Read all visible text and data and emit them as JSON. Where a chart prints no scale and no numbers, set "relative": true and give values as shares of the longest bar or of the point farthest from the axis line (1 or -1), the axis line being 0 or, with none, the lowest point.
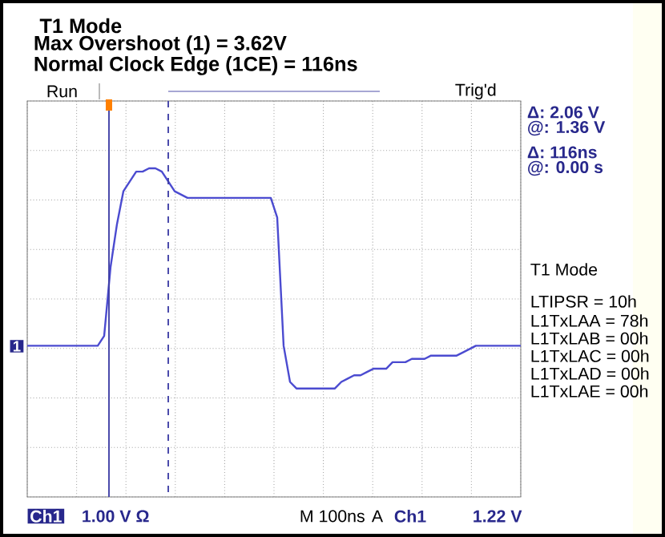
{
  "chart_data": {
    "type": "line",
    "title": "T1 Mode",
    "relative": true,
    "grid": true,
    "categories": [
      null,
      null,
      null,
      null,
      null,
      null,
      null,
      null,
      null,
      null,
      null,
      null,
      null,
      null,
      null,
      null,
      null,
      null,
      null,
      null,
      null,
      null,
      null,
      null,
      null,
      null,
      null,
      null,
      null,
      null,
      null,
      null,
      null,
      null,
      null,
      null,
      null,
      null,
      null,
      null,
      null,
      null,
      null,
      null,
      null,
      null,
      null,
      null,
      null,
      null,
      null,
      null,
      null,
      null,
      null,
      null,
      null,
      null,
      null,
      null,
      null,
      null,
      null,
      null,
      null,
      null,
      null,
      null,
      null,
      null,
      null,
      null,
      null,
      null,
      null,
      null,
      null,
      null
    ],
    "series": [
      {
        "color": "#4b4bd0",
        "values": [
          0.46,
          0.46,
          0.46,
          0.46,
          0.46,
          0.46,
          0.46,
          0.46,
          0.46,
          0.46,
          0.46,
          0.46,
          0.49,
          0.7,
          0.83,
          0.93,
          0.96,
          0.99,
          0.99,
          1,
          1,
          0.99,
          0.96,
          0.93,
          0.92,
          0.91,
          0.91,
          0.91,
          0.91,
          0.91,
          0.91,
          0.91,
          0.91,
          0.91,
          0.91,
          0.91,
          0.91,
          0.91,
          0.91,
          0.85,
          0.46,
          0.35,
          0.33,
          0.33,
          0.33,
          0.33,
          0.33,
          0.33,
          0.33,
          0.35,
          0.36,
          0.37,
          0.37,
          0.38,
          0.39,
          0.39,
          0.39,
          0.41,
          0.41,
          0.41,
          0.42,
          0.42,
          0.42,
          0.43,
          0.43,
          0.43,
          0.43,
          0.43,
          0.44,
          0.45,
          0.46,
          0.46,
          0.46,
          0.46,
          0.46,
          0.46,
          0.46,
          0.46
        ]
      }
    ],
    "annotations": [
      "Max Overshoot (1) = 3.62V",
      "Normal Clock Edge (1CE) = 116ns",
      "Run",
      "Trig'd",
      "Δ: 2.06 V",
      "@: 1.36 V",
      "Δ: 116ns",
      "@: 0.00 s",
      "T1 Mode",
      "LTIPSR = 10h",
      "L1TxLAA = 78h",
      "L1TxLAB = 00h",
      "L1TxLAC = 00h",
      "L1TxLAD = 00h",
      "L1TxLAE = 00h",
      "Ch1",
      "1.00 V Ω",
      "M 100ns",
      "A",
      "Ch1",
      "1.22 V",
      "1"
    ]
  }
}
